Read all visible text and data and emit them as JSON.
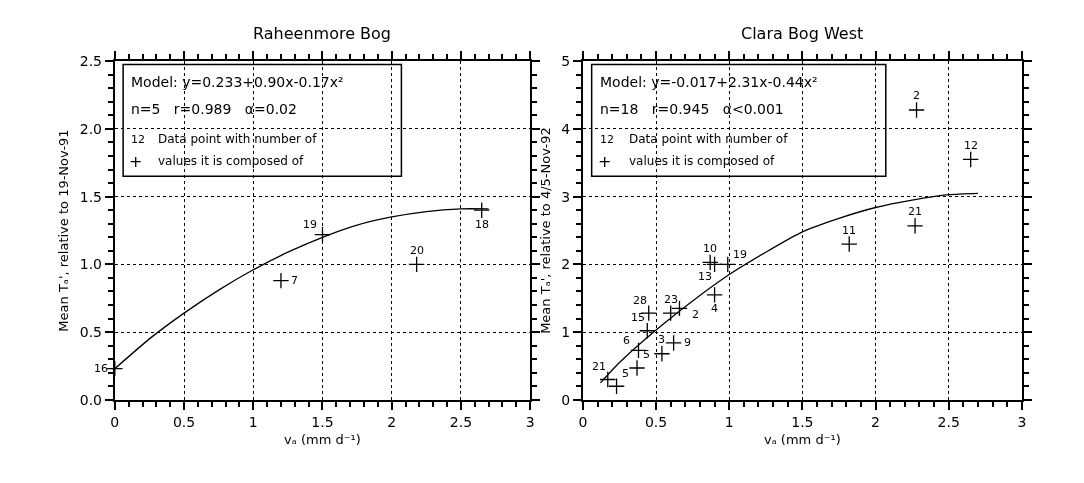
{
  "chart_data": [
    {
      "type": "scatter",
      "title": "Raheenmore Bog",
      "xlabel": "vₐ (mm d⁻¹)",
      "ylabel": "Mean Tₐ', relative to 19-Nov-91",
      "xlim": [
        0,
        3
      ],
      "xticks": [
        0,
        0.5,
        1,
        1.5,
        2,
        2.5,
        3
      ],
      "ylim": [
        0,
        2.5
      ],
      "yticks": [
        {
          "value": 0,
          "label": "0.0"
        },
        {
          "value": 0.5,
          "label": "0.5"
        },
        {
          "value": 1,
          "label": "1.0"
        },
        {
          "value": 1.5,
          "label": "1.5"
        },
        {
          "value": 2,
          "label": "2.0"
        },
        {
          "value": 2.5,
          "label": "2.5"
        }
      ],
      "grid": true,
      "marker": "cross",
      "series": [
        {
          "color": "#000000",
          "x": [
            0,
            1.2,
            1.5,
            2.18,
            2.65
          ],
          "values": [
            0.23,
            0.88,
            1.22,
            1.0,
            1.4
          ]
        },
        {
          "type": "line",
          "marker": "none",
          "color": "#000000",
          "x": [
            0,
            0.25,
            0.5,
            0.75,
            1,
            1.25,
            1.5,
            1.75,
            2,
            2.25,
            2.5,
            2.7
          ],
          "values": [
            0.23,
            0.45,
            0.64,
            0.81,
            0.96,
            1.09,
            1.2,
            1.29,
            1.35,
            1.39,
            1.41,
            1.41
          ]
        }
      ],
      "annotations": [
        "Model: y=0.233+0.90x-0.17x²",
        "n=5   r=0.989   α=0.02",
        "12",
        "+",
        "Data point with number of",
        "values it is composed of",
        {
          "text": "16",
          "x": 0,
          "y": 0.23
        },
        {
          "text": "7",
          "x": 1.2,
          "y": 0.88
        },
        {
          "text": "19",
          "x": 1.5,
          "y": 1.22
        },
        {
          "text": "20",
          "x": 2.18,
          "y": 1.0
        },
        {
          "text": "18",
          "x": 2.65,
          "y": 1.4
        }
      ]
    },
    {
      "type": "scatter",
      "title": "Clara Bog West",
      "xlabel": "vₐ (mm d⁻¹)",
      "ylabel": "Mean Tₐ', relative to 4/5-Nov-92",
      "xlim": [
        0,
        3
      ],
      "xticks": [
        0,
        0.5,
        1,
        1.5,
        2,
        2.5,
        3
      ],
      "ylim": [
        0,
        5
      ],
      "yticks": [
        0,
        1,
        2,
        3,
        4,
        5
      ],
      "grid": true,
      "marker": "cross",
      "series": [
        {
          "color": "#000000",
          "x": [
            0.17,
            0.23,
            0.37,
            0.38,
            0.44,
            0.45,
            0.54,
            0.62,
            0.6,
            0.66,
            0.9,
            0.87,
            0.9,
            0.99,
            1.82,
            2.27,
            2.28,
            2.65
          ],
          "values": [
            0.3,
            0.2,
            0.47,
            0.73,
            1.02,
            1.28,
            0.68,
            0.84,
            1.28,
            1.35,
            1.55,
            2.03,
            2.0,
            2.0,
            2.3,
            2.57,
            4.28,
            3.55
          ]
        },
        {
          "type": "line",
          "marker": "none",
          "color": "#000000",
          "x": [
            0.12,
            0.25,
            0.5,
            0.75,
            1,
            1.25,
            1.5,
            1.75,
            2,
            2.25,
            2.5,
            2.7
          ],
          "values": [
            0.25,
            0.55,
            1.03,
            1.46,
            1.85,
            2.18,
            2.48,
            2.68,
            2.84,
            2.95,
            3.03,
            3.05
          ]
        }
      ],
      "annotations": [
        "Model: y=-0.017+2.31x-0.44x²",
        "n=18   r=0.945   α<0.001",
        "12",
        "+",
        "Data point with number of",
        "values it is composed of",
        {
          "text": "21",
          "x": 0.17,
          "y": 0.3
        },
        {
          "text": "5",
          "x": 0.23,
          "y": 0.2
        },
        {
          "text": "5",
          "x": 0.37,
          "y": 0.47
        },
        {
          "text": "6",
          "x": 0.38,
          "y": 0.73
        },
        {
          "text": "15",
          "x": 0.44,
          "y": 1.02
        },
        {
          "text": "28",
          "x": 0.45,
          "y": 1.28
        },
        {
          "text": "3",
          "x": 0.54,
          "y": 0.68
        },
        {
          "text": "9",
          "x": 0.62,
          "y": 0.84
        },
        {
          "text": "23",
          "x": 0.6,
          "y": 1.28
        },
        {
          "text": "2",
          "x": 0.66,
          "y": 1.35
        },
        {
          "text": "4",
          "x": 0.9,
          "y": 1.55
        },
        {
          "text": "10",
          "x": 0.87,
          "y": 2.03
        },
        {
          "text": "13",
          "x": 0.9,
          "y": 2.0
        },
        {
          "text": "19",
          "x": 0.99,
          "y": 2.0
        },
        {
          "text": "11",
          "x": 1.82,
          "y": 2.3
        },
        {
          "text": "21",
          "x": 2.27,
          "y": 2.57
        },
        {
          "text": "2",
          "x": 2.28,
          "y": 4.28
        },
        {
          "text": "12",
          "x": 2.65,
          "y": 3.55
        }
      ]
    }
  ]
}
